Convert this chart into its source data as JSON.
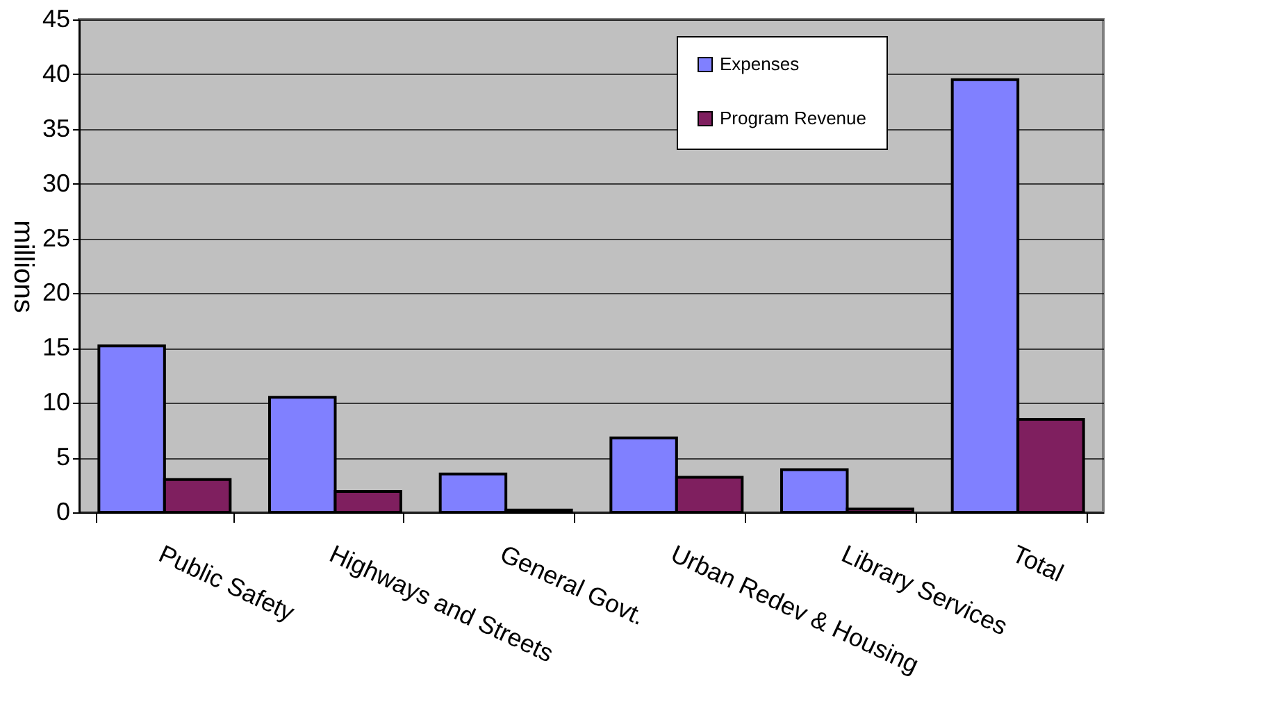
{
  "chart_data": {
    "type": "bar",
    "ylabel": "millions",
    "categories": [
      "Public Safety",
      "Highways and Streets",
      "General Govt.",
      "Urban Redev & Housing",
      "Library Services",
      "Total"
    ],
    "series": [
      {
        "name": "Expenses",
        "color": "#8080ff",
        "values": [
          15.2,
          10.5,
          3.5,
          6.8,
          3.9,
          39.5
        ]
      },
      {
        "name": "Program Revenue",
        "color": "#7f1f5f",
        "values": [
          3.0,
          1.9,
          0.2,
          3.2,
          0.3,
          8.5
        ]
      }
    ],
    "ylim": [
      0,
      45
    ],
    "yticks": [
      0,
      5,
      10,
      15,
      20,
      25,
      30,
      35,
      40,
      45
    ],
    "grid": "y",
    "legend": "top right"
  }
}
